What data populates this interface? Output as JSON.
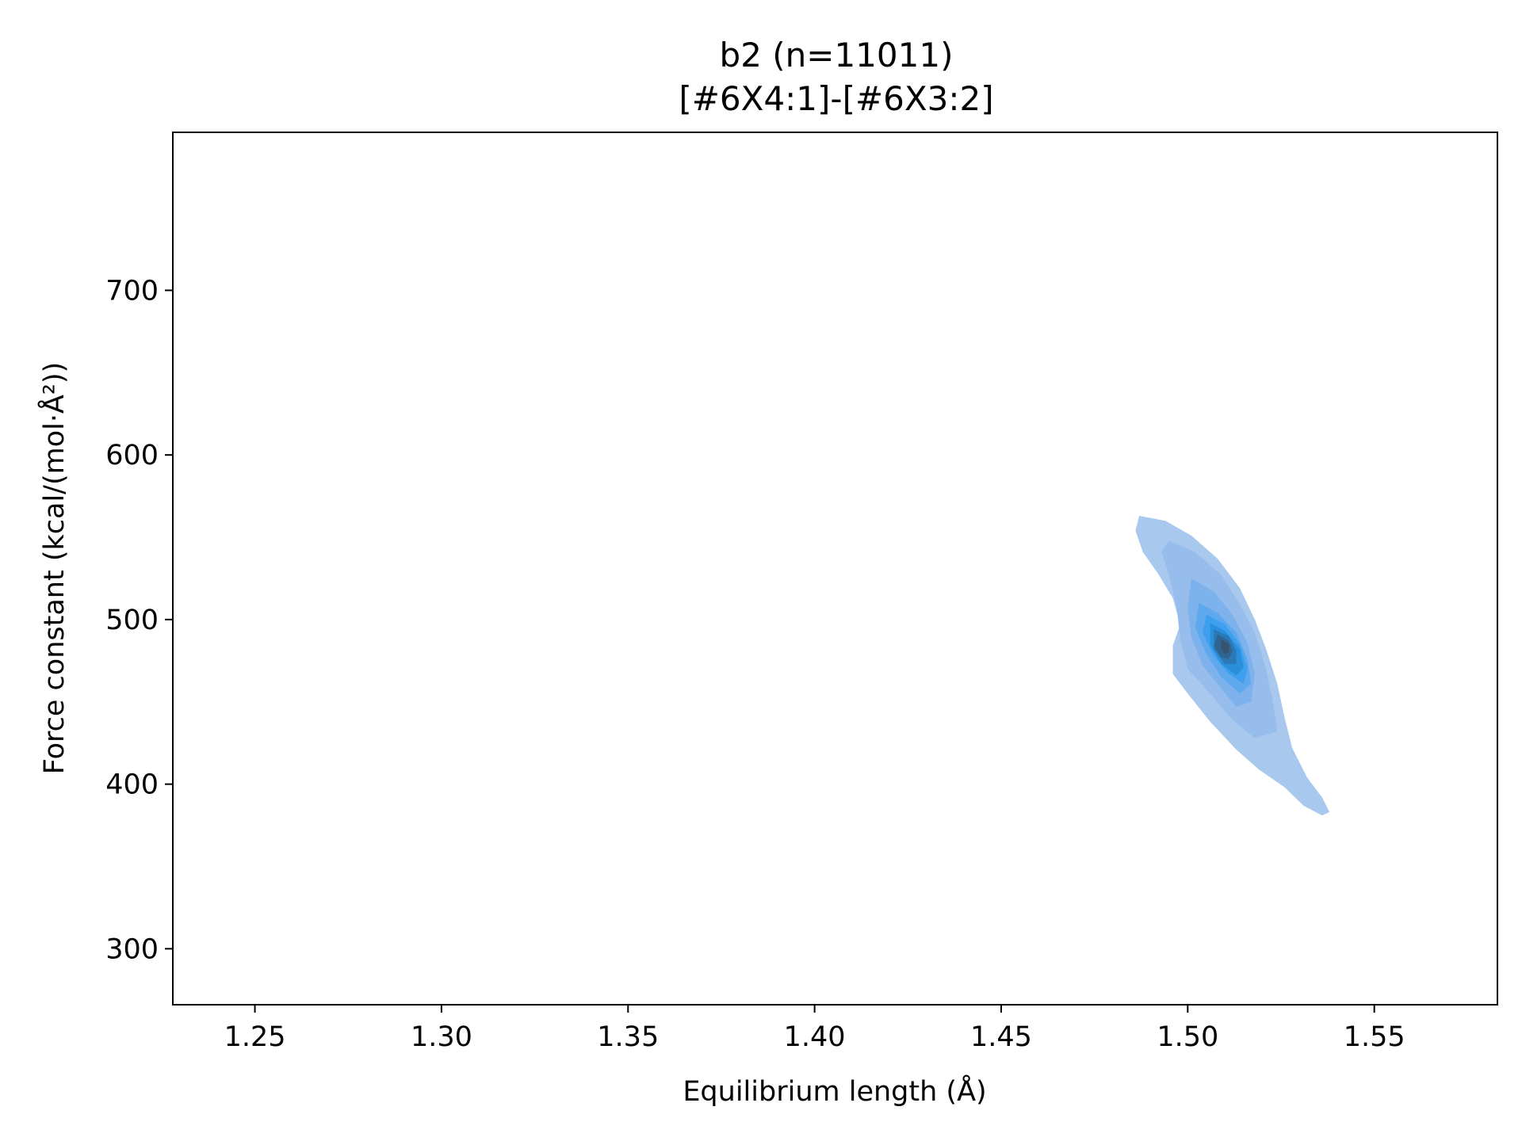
{
  "chart_data": {
    "type": "kde2d",
    "title": "b2 (n=11011)",
    "subtitle": "[#6X4:1]-[#6X3:2]",
    "xlabel": "Equilibrium length (Å)",
    "ylabel": "Force constant (kcal/(mol·Å²))",
    "xlim": [
      1.228,
      1.583
    ],
    "ylim": [
      266,
      796
    ],
    "xticks": [
      1.25,
      1.3,
      1.35,
      1.4,
      1.45,
      1.5,
      1.55
    ],
    "xtick_labels": [
      "1.25",
      "1.30",
      "1.35",
      "1.40",
      "1.45",
      "1.50",
      "1.55"
    ],
    "yticks": [
      300,
      400,
      500,
      600,
      700
    ],
    "ytick_labels": [
      "300",
      "400",
      "500",
      "600",
      "700"
    ],
    "grid": false,
    "n": 11011,
    "colors": [
      "#a9c8ee",
      "#96bdec",
      "#7db2ec",
      "#5ea8ee",
      "#3e9fef",
      "#2a8fda",
      "#2a79b6",
      "#2f6590",
      "#36546e"
    ],
    "levels": [
      {
        "polygon": [
          [
            1.487,
            563
          ],
          [
            1.494,
            560
          ],
          [
            1.501,
            551
          ],
          [
            1.508,
            537
          ],
          [
            1.514,
            519
          ],
          [
            1.518,
            500
          ],
          [
            1.521,
            482
          ],
          [
            1.524,
            461
          ],
          [
            1.526,
            440
          ],
          [
            1.528,
            422
          ],
          [
            1.532,
            404
          ],
          [
            1.536,
            392
          ],
          [
            1.538,
            383
          ],
          [
            1.536,
            381
          ],
          [
            1.531,
            387
          ],
          [
            1.526,
            398
          ],
          [
            1.519,
            409
          ],
          [
            1.513,
            421
          ],
          [
            1.506,
            438
          ],
          [
            1.5,
            455
          ],
          [
            1.496,
            467
          ],
          [
            1.496,
            484
          ],
          [
            1.498,
            497
          ],
          [
            1.496,
            513
          ],
          [
            1.492,
            528
          ],
          [
            1.488,
            541
          ],
          [
            1.486,
            554
          ]
        ]
      },
      {
        "polygon": [
          [
            1.495,
            548
          ],
          [
            1.502,
            541
          ],
          [
            1.509,
            527
          ],
          [
            1.514,
            509
          ],
          [
            1.518,
            492
          ],
          [
            1.521,
            470
          ],
          [
            1.523,
            448
          ],
          [
            1.524,
            432
          ],
          [
            1.518,
            428
          ],
          [
            1.512,
            439
          ],
          [
            1.506,
            455
          ],
          [
            1.5,
            470
          ],
          [
            1.498,
            488
          ],
          [
            1.497,
            508
          ],
          [
            1.495,
            527
          ],
          [
            1.493,
            541
          ]
        ]
      },
      {
        "polygon": [
          [
            1.501,
            525
          ],
          [
            1.507,
            517
          ],
          [
            1.512,
            503
          ],
          [
            1.516,
            486
          ],
          [
            1.518,
            467
          ],
          [
            1.517,
            450
          ],
          [
            1.513,
            447
          ],
          [
            1.509,
            458
          ],
          [
            1.504,
            472
          ],
          [
            1.501,
            489
          ],
          [
            1.5,
            507
          ]
        ]
      },
      {
        "polygon": [
          [
            1.503,
            510
          ],
          [
            1.508,
            504
          ],
          [
            1.513,
            492
          ],
          [
            1.516,
            476
          ],
          [
            1.517,
            461
          ],
          [
            1.514,
            455
          ],
          [
            1.509,
            465
          ],
          [
            1.505,
            479
          ],
          [
            1.502,
            495
          ]
        ]
      },
      {
        "polygon": [
          [
            1.505,
            503
          ],
          [
            1.51,
            497
          ],
          [
            1.514,
            485
          ],
          [
            1.516,
            470
          ],
          [
            1.515,
            461
          ],
          [
            1.511,
            467
          ],
          [
            1.507,
            478
          ],
          [
            1.504,
            492
          ]
        ]
      },
      {
        "polygon": [
          [
            1.506,
            498
          ],
          [
            1.51,
            493
          ],
          [
            1.514,
            482
          ],
          [
            1.515,
            471
          ],
          [
            1.513,
            466
          ],
          [
            1.509,
            473
          ],
          [
            1.506,
            485
          ]
        ]
      },
      {
        "polygon": [
          [
            1.507,
            494
          ],
          [
            1.511,
            490
          ],
          [
            1.513,
            481
          ],
          [
            1.513,
            473
          ],
          [
            1.51,
            473
          ],
          [
            1.507,
            482
          ]
        ]
      },
      {
        "polygon": [
          [
            1.508,
            491
          ],
          [
            1.511,
            487
          ],
          [
            1.512,
            481
          ],
          [
            1.511,
            476
          ],
          [
            1.509,
            477
          ],
          [
            1.507,
            484
          ]
        ]
      },
      {
        "polygon": [
          [
            1.509,
            488
          ],
          [
            1.511,
            485
          ],
          [
            1.511,
            480
          ],
          [
            1.51,
            479
          ],
          [
            1.509,
            482
          ]
        ]
      }
    ]
  }
}
